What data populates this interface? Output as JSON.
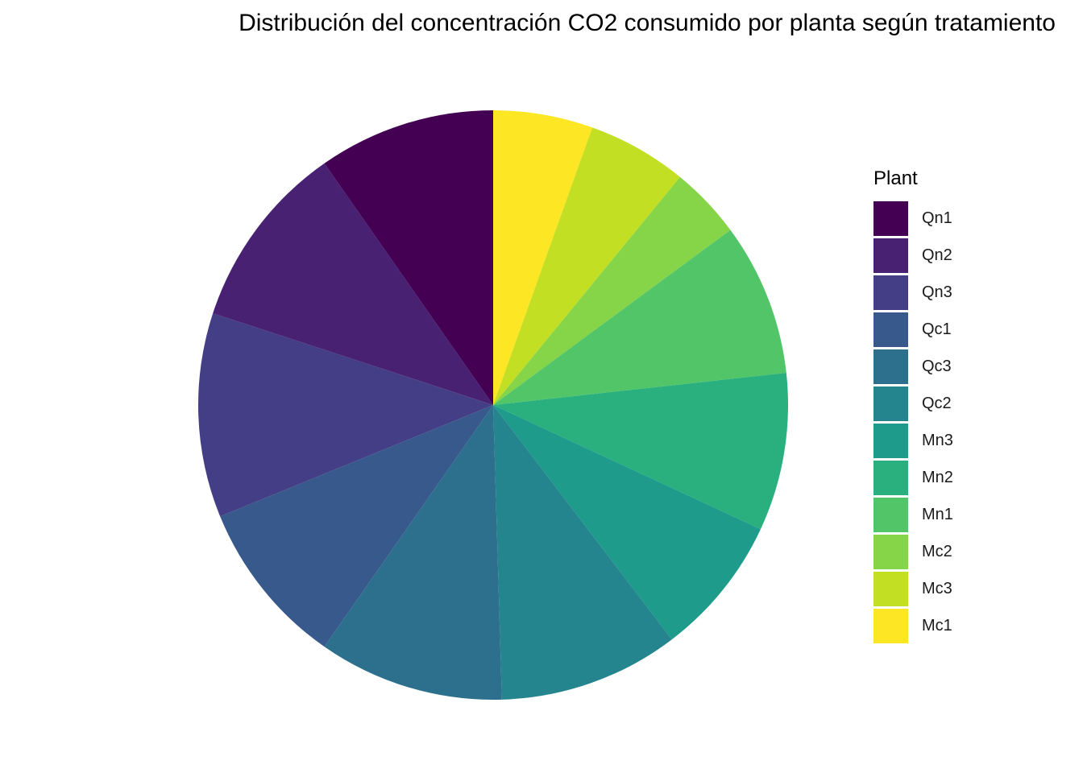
{
  "chart_data": {
    "type": "pie",
    "title": "Distribución del concentración CO2 consumido por planta según tratamiento",
    "legend_title": "Plant",
    "legend_position": "right",
    "direction": "clockwise",
    "start": "top",
    "slices": [
      {
        "label": "Mc1",
        "value": 5.8,
        "color": "#FDE725"
      },
      {
        "label": "Mc3",
        "value": 5.8,
        "color": "#C2DF23"
      },
      {
        "label": "Mc2",
        "value": 4.2,
        "color": "#86D549"
      },
      {
        "label": "Mn1",
        "value": 8.9,
        "color": "#52C569"
      },
      {
        "label": "Mn2",
        "value": 9.2,
        "color": "#2AB07F"
      },
      {
        "label": "Mn3",
        "value": 8.2,
        "color": "#1E9B8A"
      },
      {
        "label": "Qc2",
        "value": 10.5,
        "color": "#25858E"
      },
      {
        "label": "Qc3",
        "value": 10.8,
        "color": "#2D708E"
      },
      {
        "label": "Qc1",
        "value": 9.7,
        "color": "#38598C"
      },
      {
        "label": "Qn3",
        "value": 11.9,
        "color": "#433E85"
      },
      {
        "label": "Qn2",
        "value": 10.9,
        "color": "#482173"
      },
      {
        "label": "Qn1",
        "value": 10.3,
        "color": "#440154"
      }
    ],
    "legend_order": [
      "Qn1",
      "Qn2",
      "Qn3",
      "Qc1",
      "Qc3",
      "Qc2",
      "Mn3",
      "Mn2",
      "Mn1",
      "Mc2",
      "Mc3",
      "Mc1"
    ]
  }
}
